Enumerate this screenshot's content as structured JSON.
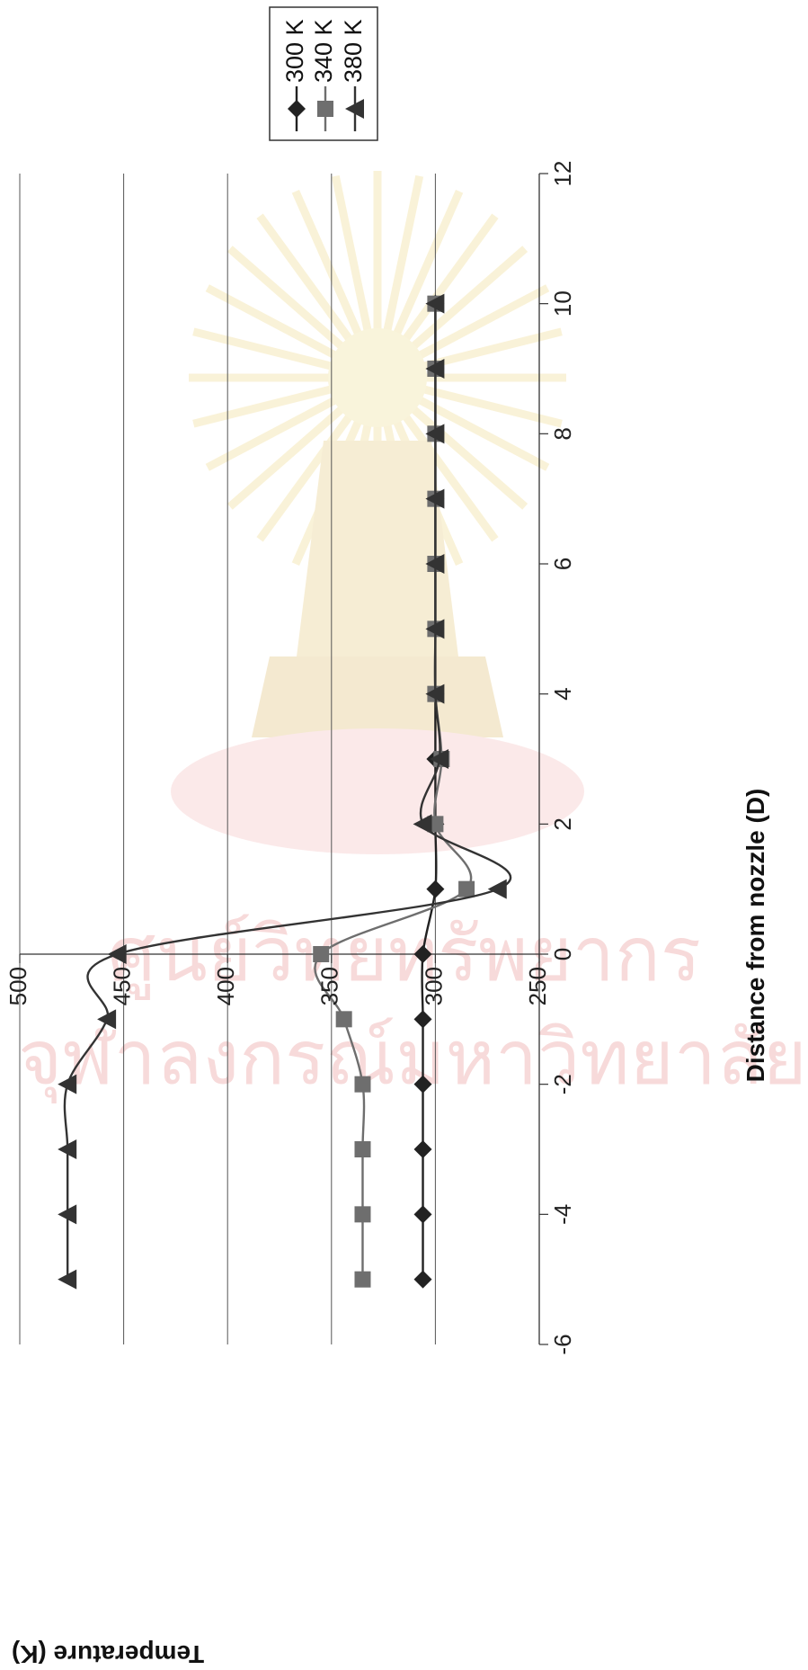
{
  "chart_data": {
    "type": "line",
    "title": "",
    "xlabel": "Distance from nozzle (D)",
    "ylabel": "Temperature (K)",
    "xlim": [
      -6,
      12
    ],
    "ylim": [
      250,
      500
    ],
    "xticks": [
      -6,
      -4,
      -2,
      0,
      2,
      4,
      6,
      8,
      10,
      12
    ],
    "yticks": [
      250,
      300,
      350,
      400,
      450,
      500
    ],
    "grid": true,
    "legend_position": "top-right",
    "x": [
      -5,
      -4,
      -3,
      -2,
      -1,
      0,
      1,
      2,
      3,
      4,
      5,
      6,
      7,
      8,
      9,
      10
    ],
    "series": [
      {
        "name": "300 K",
        "marker": "diamond",
        "color": "#222222",
        "values": [
          306,
          306,
          306,
          306,
          306,
          306,
          300,
          300,
          300,
          300,
          300,
          300,
          300,
          300,
          300,
          300
        ]
      },
      {
        "name": "340 K",
        "marker": "square",
        "color": "#6e6e6e",
        "values": [
          335,
          335,
          335,
          335,
          344,
          355,
          285,
          300,
          297,
          300,
          300,
          300,
          300,
          300,
          300,
          300
        ]
      },
      {
        "name": "380 K",
        "marker": "triangle",
        "color": "#333333",
        "values": [
          477,
          477,
          477,
          477,
          458,
          453,
          270,
          306,
          298,
          300,
          300,
          300,
          300,
          300,
          300,
          300
        ]
      }
    ]
  },
  "watermark_text": {
    "line1": "ศูนย์วิทยทรัพยากร",
    "line2": "จุฬาลงกรณ์มหาวิทยาลัย"
  }
}
